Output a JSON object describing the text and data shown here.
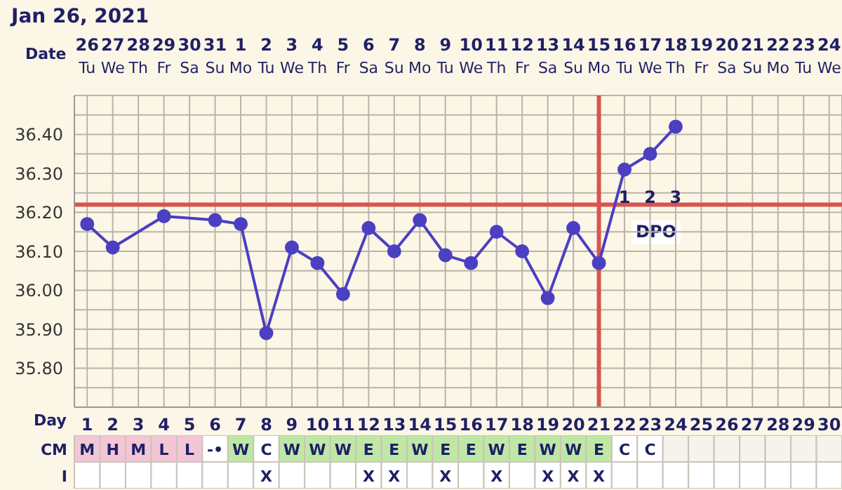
{
  "chart_data": [
    {
      "type": "line",
      "title": "Jan 26, 2021",
      "xlabel": "Date",
      "x2label": "Day",
      "x": [
        "2021-01-26",
        "2021-01-27",
        "2021-01-28",
        "2021-01-29",
        "2021-01-30",
        "2021-01-31",
        "2021-02-01",
        "2021-02-02",
        "2021-02-03",
        "2021-02-04",
        "2021-02-05",
        "2021-02-06",
        "2021-02-07",
        "2021-02-08",
        "2021-02-09",
        "2021-02-10",
        "2021-02-11",
        "2021-02-12",
        "2021-02-13",
        "2021-02-14",
        "2021-02-15",
        "2021-02-16",
        "2021-02-17",
        "2021-02-18"
      ],
      "series": [
        {
          "color": "#4b3fc2",
          "values": [
            36.17,
            36.11,
            null,
            36.19,
            null,
            36.18,
            36.17,
            35.89,
            36.11,
            36.07,
            35.99,
            36.16,
            36.1,
            36.18,
            36.09,
            36.07,
            36.15,
            36.1,
            35.98,
            36.16,
            36.07,
            36.31,
            36.35,
            36.42
          ]
        }
      ],
      "xlim": [
        "2021-01-25T12:00",
        "2021-02-24T12:00"
      ],
      "xticks": [
        {
          "value": "2021-01-26",
          "label": "26\nTu"
        },
        {
          "value": "2021-01-27",
          "label": "27\nWe"
        },
        {
          "value": "2021-01-28",
          "label": "28\nTh"
        },
        {
          "value": "2021-01-29",
          "label": "29\nFr"
        },
        {
          "value": "2021-01-30",
          "label": "30\nSa"
        },
        {
          "value": "2021-01-31",
          "label": "31\nSu"
        },
        {
          "value": "2021-02-01",
          "label": "1\nMo"
        },
        {
          "value": "2021-02-02",
          "label": "2\nTu"
        },
        {
          "value": "2021-02-03",
          "label": "3\nWe"
        },
        {
          "value": "2021-02-04",
          "label": "4\nTh"
        },
        {
          "value": "2021-02-05",
          "label": "5\nFr"
        },
        {
          "value": "2021-02-06",
          "label": "6\nSa"
        },
        {
          "value": "2021-02-07",
          "label": "7\nSu"
        },
        {
          "value": "2021-02-08",
          "label": "8\nMo"
        },
        {
          "value": "2021-02-09",
          "label": "9\nTu"
        },
        {
          "value": "2021-02-10",
          "label": "10\nWe"
        },
        {
          "value": "2021-02-11",
          "label": "11\nTh"
        },
        {
          "value": "2021-02-12",
          "label": "12\nFr"
        },
        {
          "value": "2021-02-13",
          "label": "13\nSa"
        },
        {
          "value": "2021-02-14",
          "label": "14\nSu"
        },
        {
          "value": "2021-02-15",
          "label": "15\nMo"
        },
        {
          "value": "2021-02-16",
          "label": "16\nTu"
        },
        {
          "value": "2021-02-17",
          "label": "17\nWe"
        },
        {
          "value": "2021-02-18",
          "label": "18\nTh"
        },
        {
          "value": "2021-02-19",
          "label": "19\nFr"
        },
        {
          "value": "2021-02-20",
          "label": "20\nSa"
        },
        {
          "value": "2021-02-21",
          "label": "21\nSu"
        },
        {
          "value": "2021-02-22",
          "label": "22\nMo"
        },
        {
          "value": "2021-02-23",
          "label": "23\nTu"
        },
        {
          "value": "2021-02-24",
          "label": "24\nWe"
        }
      ],
      "x2lim": [
        0.5,
        30.5
      ],
      "x2ticks": [
        1,
        2,
        3,
        4,
        5,
        6,
        7,
        8,
        9,
        10,
        11,
        12,
        13,
        14,
        15,
        16,
        17,
        18,
        19,
        20,
        21,
        22,
        23,
        24,
        25,
        26,
        27,
        28,
        29,
        30
      ],
      "ylim": [
        35.7,
        36.5
      ],
      "yticks": [
        {
          "value": 35.7,
          "label": null
        },
        {
          "value": 35.75,
          "label": null
        },
        {
          "value": 35.8,
          "label": "35.80"
        },
        {
          "value": 35.85,
          "label": null
        },
        {
          "value": 35.9,
          "label": "35.90"
        },
        {
          "value": 35.95,
          "label": null
        },
        {
          "value": 36.0,
          "label": "36.00"
        },
        {
          "value": 36.05,
          "label": null
        },
        {
          "value": 36.1,
          "label": "36.10"
        },
        {
          "value": 36.15,
          "label": null
        },
        {
          "value": 36.2,
          "label": "36.20"
        },
        {
          "value": 36.25,
          "label": null
        },
        {
          "value": 36.3,
          "label": "36.30"
        },
        {
          "value": 36.35,
          "label": null
        },
        {
          "value": 36.4,
          "label": "36.40"
        },
        {
          "value": 36.45,
          "label": null
        },
        {
          "value": 36.5,
          "label": null
        }
      ],
      "grid": true,
      "marker": "circle",
      "line_style": "solid",
      "legend": false,
      "ref_lines": [
        {
          "axis": "y",
          "value": 36.22,
          "color": "#d9534f"
        },
        {
          "axis": "x",
          "value": "2021-02-15",
          "color": "#d9534f"
        }
      ],
      "annotations": [
        {
          "text": "1",
          "x": "2021-02-16",
          "y": 36.24
        },
        {
          "text": "2",
          "x": "2021-02-17",
          "y": 36.24
        },
        {
          "text": "3",
          "x": "2021-02-18",
          "y": 36.24
        },
        "DPO"
      ]
    },
    {
      "type": "other",
      "categories": [
        null,
        null,
        null,
        null,
        null,
        null,
        null,
        null,
        null,
        null,
        null,
        null,
        null,
        null,
        null,
        null,
        null,
        null,
        null,
        null,
        null,
        null,
        null,
        null,
        null,
        null,
        null,
        null,
        null,
        null
      ],
      "y_categories": [
        "CM",
        "I"
      ],
      "cell_labels": [
        [
          "M",
          "H",
          "M",
          "L",
          "L",
          "-•",
          "W",
          "C",
          "W",
          "W",
          "W",
          "E",
          "E",
          "W",
          "E",
          "E",
          "W",
          "E",
          "W",
          "W",
          "E",
          "C",
          "C",
          null,
          null,
          null,
          null,
          null,
          null,
          null
        ],
        [
          null,
          null,
          null,
          null,
          null,
          null,
          null,
          "X",
          null,
          null,
          null,
          "X",
          "X",
          null,
          "X",
          null,
          "X",
          null,
          "X",
          "X",
          "X",
          null,
          null,
          null,
          null,
          null,
          null,
          null,
          null,
          null
        ]
      ],
      "colors": [
        [
          "#f3c6d6",
          "#f3c6d6",
          "#f3c6d6",
          "#f3c6d6",
          "#f3c6d6",
          "#ffffff",
          "#bfe8a6",
          "#ffffff",
          "#bfe8a6",
          "#bfe8a6",
          "#bfe8a6",
          "#bfe8a6",
          "#bfe8a6",
          "#bfe8a6",
          "#bfe8a6",
          "#bfe8a6",
          "#bfe8a6",
          "#bfe8a6",
          "#bfe8a6",
          "#bfe8a6",
          "#bfe8a6",
          "#ffffff",
          "#ffffff",
          "#f6f3ec",
          "#f6f3ec",
          "#f6f3ec",
          "#f6f3ec",
          "#f6f3ec",
          "#f6f3ec",
          "#f6f3ec"
        ],
        [
          "#ffffff",
          "#ffffff",
          "#ffffff",
          "#ffffff",
          "#ffffff",
          "#ffffff",
          "#ffffff",
          "#ffffff",
          "#ffffff",
          "#ffffff",
          "#ffffff",
          "#ffffff",
          "#ffffff",
          "#ffffff",
          "#ffffff",
          "#ffffff",
          "#ffffff",
          "#ffffff",
          "#ffffff",
          "#ffffff",
          "#ffffff",
          "#ffffff",
          "#ffffff",
          "#ffffff",
          "#ffffff",
          "#ffffff",
          "#ffffff",
          "#ffffff",
          "#ffffff",
          "#ffffff"
        ]
      ]
    }
  ]
}
